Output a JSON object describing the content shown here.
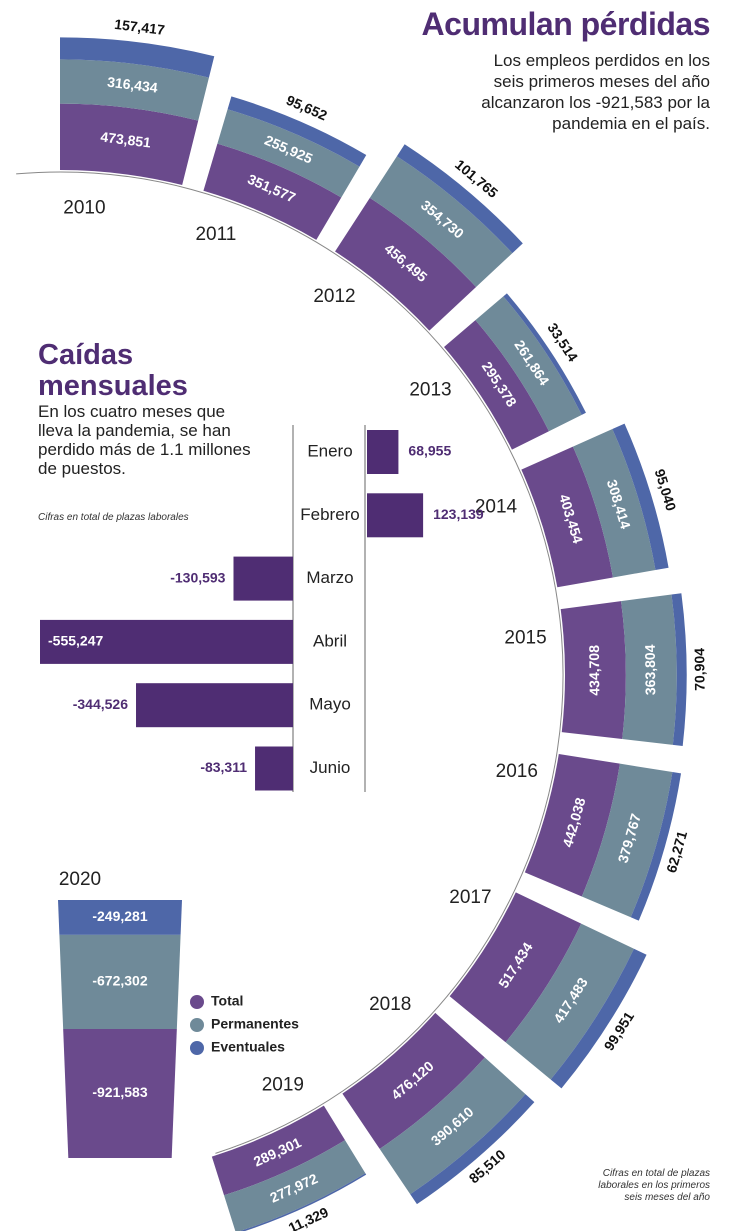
{
  "chart_data": [
    {
      "type": "radialbar",
      "title": "Acumulan pérdidas",
      "subtitle": "Los empleos perdidos en los seis primeros meses del año alcanzaron los -921,583 por la pandemia en el país.",
      "note": "Cifras en total de plazas laborales en los primeros seis meses del año",
      "categories": [
        "2010",
        "2011",
        "2012",
        "2013",
        "2014",
        "2015",
        "2016",
        "2017",
        "2018",
        "2019",
        "2020"
      ],
      "series": [
        {
          "name": "Total",
          "color": "#6a4a8c",
          "values": [
            473851,
            351577,
            456495,
            295378,
            403454,
            434708,
            442038,
            517434,
            476120,
            289301,
            -921583
          ],
          "value_labels": [
            "473,851",
            "351,577",
            "456,495",
            "295,378",
            "403,454",
            "434,708",
            "442,038",
            "517,434",
            "476,120",
            "289,301",
            "-921,583"
          ]
        },
        {
          "name": "Permanentes",
          "color": "#6f8a99",
          "values": [
            316434,
            255925,
            354730,
            261864,
            308414,
            363804,
            379767,
            417483,
            390610,
            277972,
            -672302
          ],
          "value_labels": [
            "316,434",
            "255,925",
            "354,730",
            "261,864",
            "308,414",
            "363,804",
            "379,767",
            "417,483",
            "390,610",
            "277,972",
            "-672,302"
          ]
        },
        {
          "name": "Eventuales",
          "color": "#4e67a8",
          "values": [
            157417,
            95652,
            101765,
            33514,
            95040,
            70904,
            62271,
            99951,
            85510,
            11329,
            -249281
          ],
          "value_labels": [
            "157,417",
            "95,652",
            "101,765",
            "33,514",
            "95,040",
            "70,904",
            "62,271",
            "99,951",
            "85,510",
            "11,329",
            "-249,281"
          ]
        }
      ]
    },
    {
      "type": "hbar",
      "title": "Caídas mensuales",
      "subtitle": "En los cuatro meses que lleva la pandemia, se han perdido más de 1.1 millones de puestos.",
      "note": "Cifras en total de plazas laborales",
      "categories": [
        "Enero",
        "Febrero",
        "Marzo",
        "Abril",
        "Mayo",
        "Junio"
      ],
      "values": [
        68955,
        123139,
        -130593,
        -555247,
        -344526,
        -83311
      ],
      "value_labels": [
        "68,955",
        "123,139",
        "-130,593",
        "-555,247",
        "-344,526",
        "-83,311"
      ],
      "color": "#4f2d73"
    }
  ]
}
